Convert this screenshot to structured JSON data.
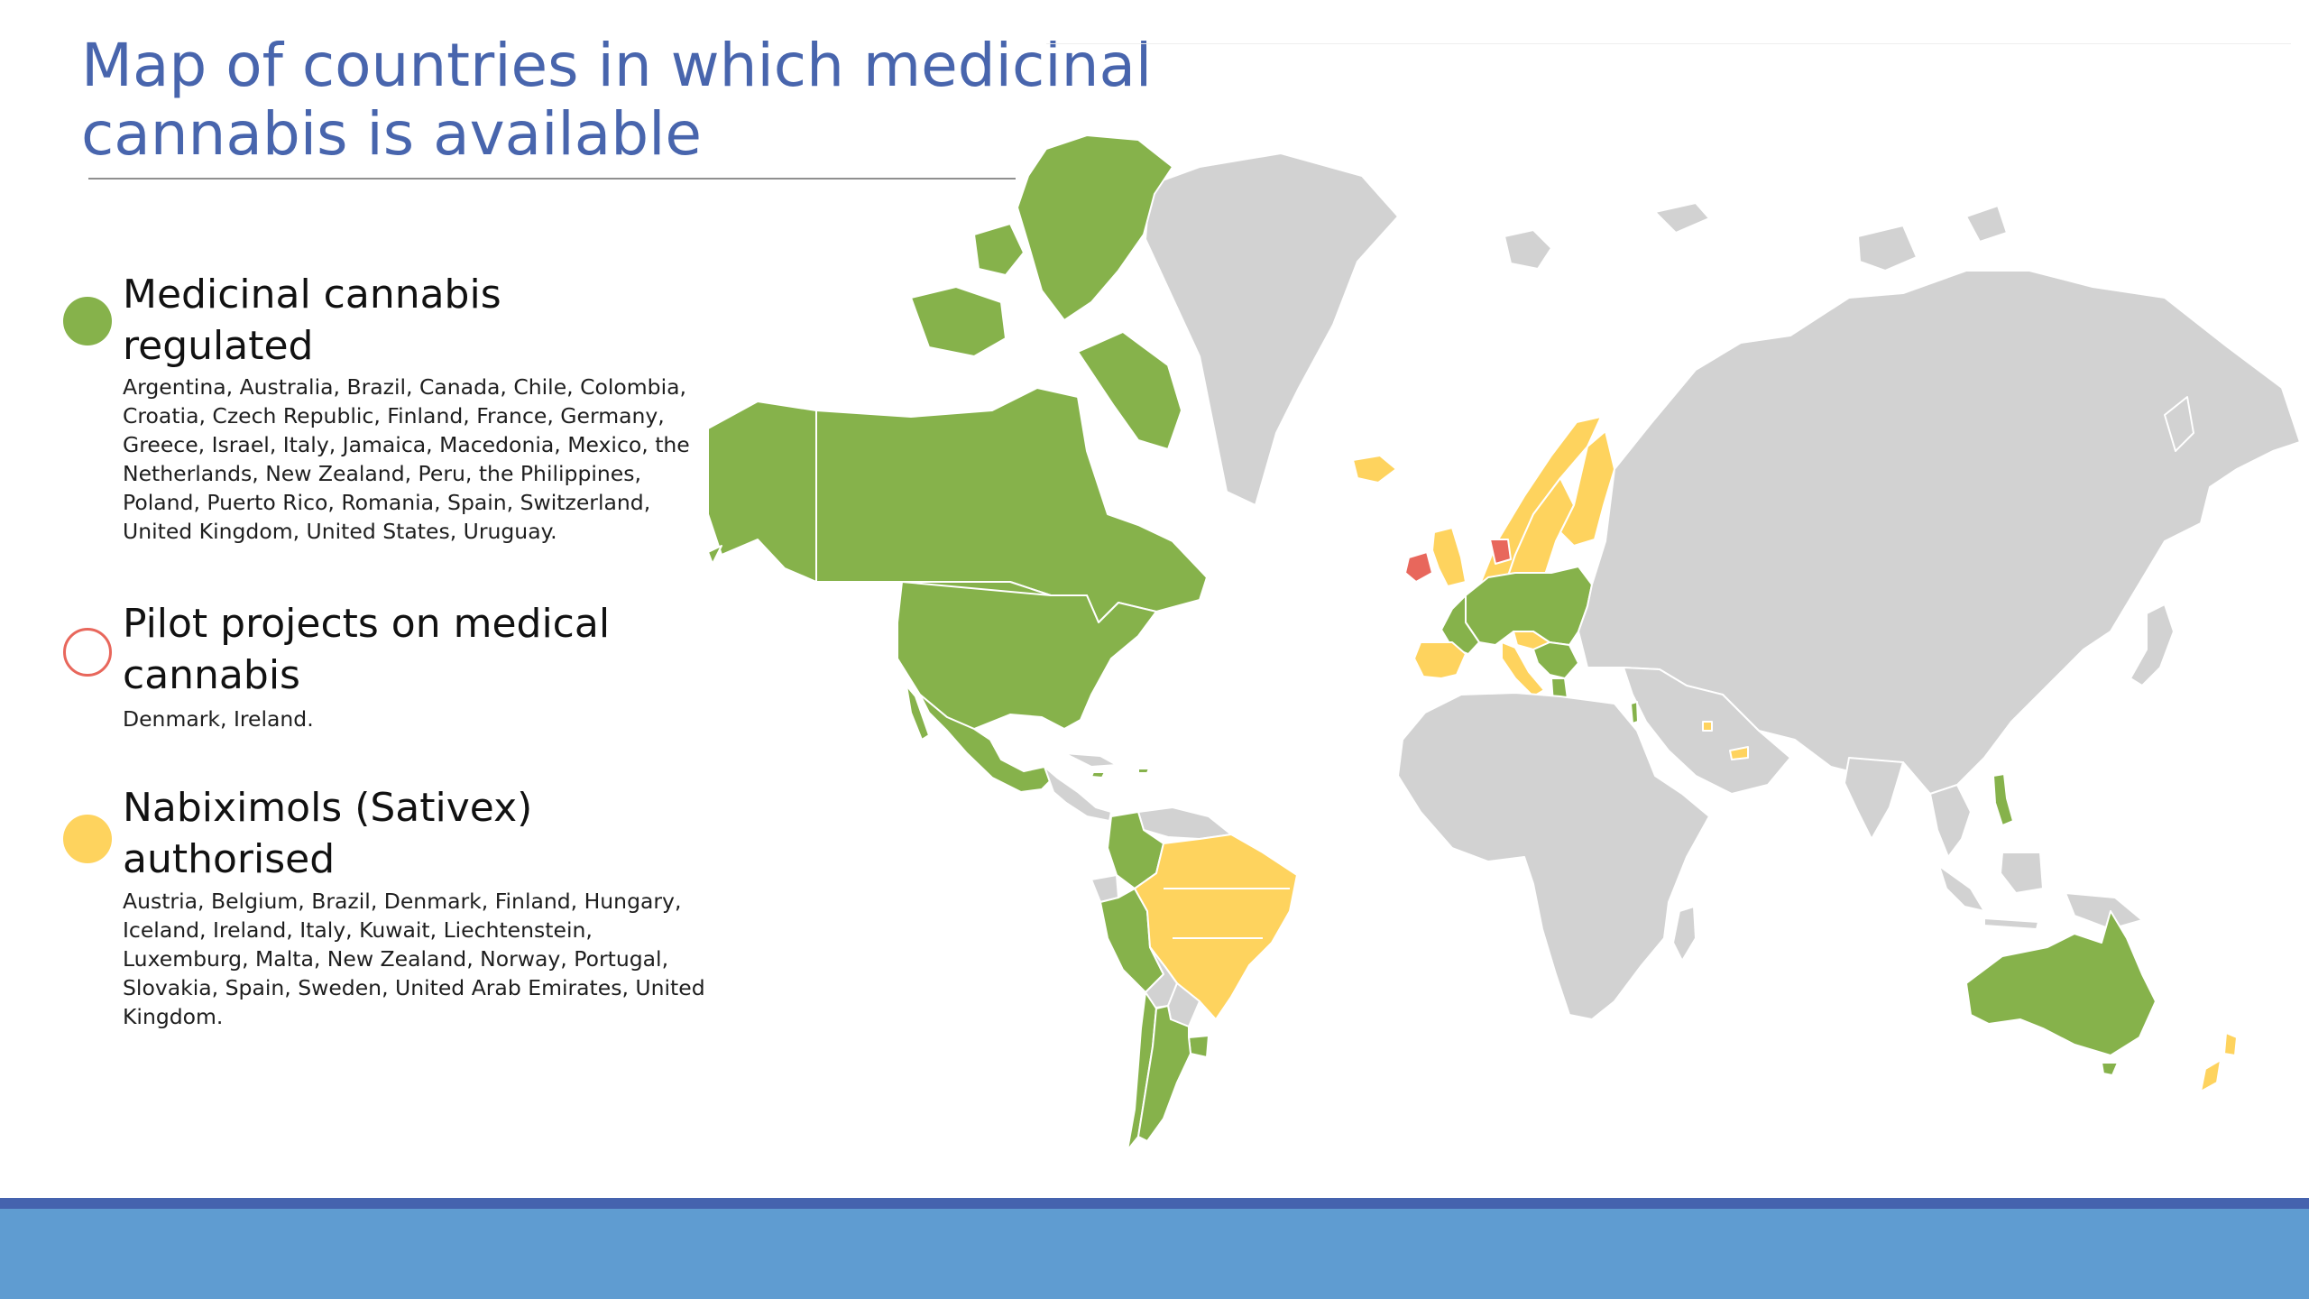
{
  "slide": {
    "title_line1": "Map of countries in which medicinal",
    "title_line2": "cannabis is available"
  },
  "legend": [
    {
      "heading": "Medicinal cannabis regulated",
      "countries": "Argentina, Australia, Brazil, Canada, Chile, Colombia, Croatia, Czech Republic, Finland, France, Germany, Greece, Israel, Italy, Jamaica, Macedonia, Mexico, the Netherlands, New Zealand, Peru, the Philippines, Poland, Puerto Rico, Romania, Spain, Switzerland, United Kingdom, United States, Uruguay.",
      "marker": "filled-circle",
      "color": "#86b24b"
    },
    {
      "heading": "Pilot projects on medical cannabis",
      "countries": "Denmark, Ireland.",
      "marker": "outline-circle",
      "color": "#e8675c"
    },
    {
      "heading": "Nabiximols (Sativex) authorised",
      "countries": "Austria, Belgium, Brazil, Denmark, Finland, Hungary, Iceland, Ireland, Italy, Kuwait, Liechtenstein, Luxemburg, Malta, New Zealand, Norway, Portugal, Slovakia, Spain, Sweden, United Arab Emirates, United Kingdom.",
      "marker": "filled-circle",
      "color": "#fed35e"
    }
  ],
  "map": {
    "colors": {
      "regulated": "#86b24b",
      "nabiximols": "#fed35e",
      "pilot": "#e8675c",
      "other": "#d2d2d2"
    },
    "regulated_regions": [
      "Canada",
      "United States",
      "Mexico",
      "Jamaica",
      "Puerto Rico",
      "Colombia",
      "Peru",
      "Chile",
      "Argentina",
      "Uruguay",
      "Australia",
      "Philippines",
      "Europe (regulated countries)"
    ],
    "nabiximols_regions": [
      "Brazil",
      "Iceland",
      "Norway",
      "Sweden",
      "Finland",
      "Spain",
      "Portugal",
      "New Zealand",
      "Kuwait",
      "United Arab Emirates"
    ],
    "pilot_regions": [
      "Denmark",
      "Ireland"
    ]
  },
  "theme": {
    "title_color": "#4865ad",
    "footer_band_color": "#5f9cd1",
    "footer_stripe_color": "#4563ae"
  }
}
